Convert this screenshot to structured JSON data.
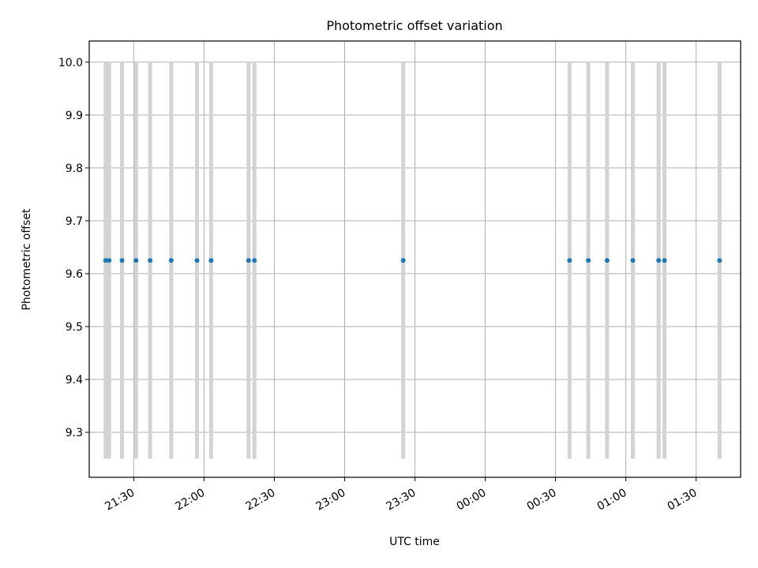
{
  "chart_data": {
    "type": "scatter",
    "title": "Photometric offset variation",
    "xlabel": "UTC time",
    "ylabel": "Photometric offset",
    "xlim": [
      "21:11",
      "01:49"
    ],
    "ylim": [
      9.215,
      10.04
    ],
    "xticks": [
      "21:30",
      "22:00",
      "22:30",
      "23:00",
      "23:30",
      "00:00",
      "00:30",
      "01:00",
      "01:30"
    ],
    "yticks": [
      "9.3",
      "9.4",
      "9.5",
      "9.6",
      "9.7",
      "9.8",
      "9.9",
      "10.0"
    ],
    "grid": true,
    "vspan_range": [
      9.25,
      10.0
    ],
    "vspan_color": "#d3d3d3",
    "point_color": "#1f77b4",
    "points": [
      {
        "x": "21:18",
        "y": 9.625
      },
      {
        "x": "21:19.5",
        "y": 9.625
      },
      {
        "x": "21:25",
        "y": 9.625
      },
      {
        "x": "21:31",
        "y": 9.625
      },
      {
        "x": "21:37",
        "y": 9.625
      },
      {
        "x": "21:46",
        "y": 9.625
      },
      {
        "x": "21:57",
        "y": 9.625
      },
      {
        "x": "22:03",
        "y": 9.625
      },
      {
        "x": "22:19",
        "y": 9.625
      },
      {
        "x": "22:21.5",
        "y": 9.625
      },
      {
        "x": "23:25",
        "y": 9.625
      },
      {
        "x": "00:36",
        "y": 9.625
      },
      {
        "x": "00:44",
        "y": 9.625
      },
      {
        "x": "00:52",
        "y": 9.625
      },
      {
        "x": "01:03",
        "y": 9.625
      },
      {
        "x": "01:14",
        "y": 9.625
      },
      {
        "x": "01:16.5",
        "y": 9.625
      },
      {
        "x": "01:40",
        "y": 9.625
      }
    ]
  }
}
